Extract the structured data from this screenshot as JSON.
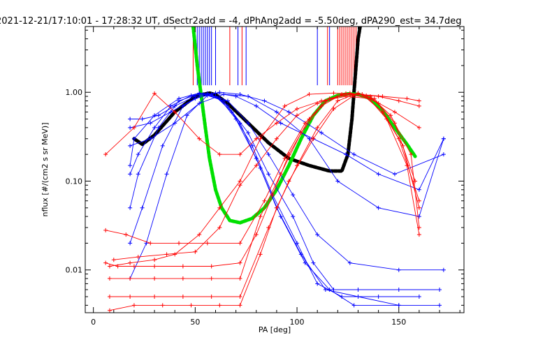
{
  "chart_data": {
    "type": "line",
    "title": "2021-12-21/17:10:01 - 17:28:32 UT, dSectr2add = -4, dPhAng2add = -5.50deg, dPA290_est=  34.7deg",
    "xlabel": "PA [deg]",
    "ylabel": "nflux [#/(cm2 s sr MeV)]",
    "xlim": [
      -4,
      182
    ],
    "ylim": [
      0.0033,
      5.5
    ],
    "yscale": "log",
    "grid": false,
    "x_ticks": [
      0,
      50,
      100,
      150
    ],
    "x_tick_labels": [
      "0",
      "50",
      "100",
      "150"
    ],
    "y_ticks": [
      0.01,
      0.1,
      1.0
    ],
    "y_tick_labels": [
      "0.01",
      "0.10",
      "1.00"
    ],
    "colors": {
      "blue": "#0000ff",
      "red": "#ff0000",
      "black": "#000000",
      "green": "#00e000"
    },
    "marker_lines": {
      "blue": [
        51,
        52,
        53,
        54,
        55,
        56,
        57,
        58,
        60,
        71,
        75,
        110,
        116
      ],
      "red": [
        49,
        67,
        73,
        115,
        120,
        121,
        122,
        123,
        124,
        125,
        126,
        127,
        128,
        129
      ],
      "y_from": 1.2,
      "y_to": 5.5
    },
    "series": [
      {
        "color": "black",
        "style": "thick-dashed",
        "x": [
          20,
          24,
          30,
          40,
          50,
          57,
          60,
          66,
          76,
          86,
          96,
          106,
          116,
          122,
          125,
          127,
          128,
          129,
          130,
          131
        ],
        "y": [
          0.3,
          0.26,
          0.33,
          0.6,
          0.9,
          0.98,
          0.94,
          0.75,
          0.45,
          0.27,
          0.18,
          0.15,
          0.13,
          0.13,
          0.2,
          0.5,
          1.0,
          2.0,
          4.0,
          5.5
        ]
      },
      {
        "color": "green",
        "style": "thick-dashed",
        "x": [
          49,
          51,
          53,
          55,
          57,
          60,
          63,
          67,
          72,
          78,
          84,
          90,
          96,
          102,
          108,
          114,
          120,
          125,
          130,
          136,
          142,
          148,
          154,
          158
        ],
        "y": [
          5.5,
          2.0,
          0.9,
          0.4,
          0.18,
          0.08,
          0.05,
          0.036,
          0.034,
          0.038,
          0.05,
          0.08,
          0.15,
          0.3,
          0.55,
          0.8,
          0.92,
          0.96,
          0.95,
          0.85,
          0.62,
          0.4,
          0.26,
          0.19
        ]
      },
      {
        "color": "blue",
        "style": "cross-line",
        "x": [
          18,
          20,
          30,
          42,
          52,
          58,
          66,
          76,
          86,
          98,
          108,
          118,
          130,
          150,
          170
        ],
        "y": [
          0.15,
          0.3,
          0.55,
          0.85,
          0.98,
          0.95,
          0.7,
          0.35,
          0.12,
          0.04,
          0.012,
          0.006,
          0.006,
          0.006,
          0.006
        ]
      },
      {
        "color": "blue",
        "style": "cross-line",
        "x": [
          18,
          22,
          32,
          42,
          52,
          60,
          68,
          78,
          88,
          100,
          110,
          122,
          140,
          160
        ],
        "y": [
          0.05,
          0.12,
          0.4,
          0.8,
          0.96,
          0.9,
          0.6,
          0.25,
          0.07,
          0.02,
          0.007,
          0.005,
          0.005,
          0.005
        ]
      },
      {
        "color": "blue",
        "style": "cross-line",
        "x": [
          18,
          24,
          34,
          44,
          54,
          62,
          70,
          80,
          90,
          102,
          114,
          130,
          150,
          170
        ],
        "y": [
          0.02,
          0.05,
          0.25,
          0.7,
          0.95,
          0.85,
          0.5,
          0.18,
          0.05,
          0.015,
          0.006,
          0.005,
          0.004,
          0.004
        ]
      },
      {
        "color": "blue",
        "style": "cross-line",
        "x": [
          18,
          26,
          36,
          46,
          56,
          64,
          72,
          82,
          92,
          104,
          116,
          128,
          150
        ],
        "y": [
          0.008,
          0.02,
          0.12,
          0.55,
          0.92,
          0.8,
          0.45,
          0.14,
          0.04,
          0.012,
          0.006,
          0.004,
          0.004
        ]
      },
      {
        "color": "blue",
        "style": "cross-line",
        "x": [
          18,
          24,
          32,
          40,
          50,
          60,
          70,
          80,
          92,
          108,
          124,
          140,
          160,
          172
        ],
        "y": [
          0.5,
          0.5,
          0.55,
          0.7,
          0.9,
          0.98,
          0.9,
          0.7,
          0.45,
          0.3,
          0.2,
          0.12,
          0.08,
          0.3
        ]
      },
      {
        "color": "blue",
        "style": "cross-line",
        "x": [
          18,
          28,
          38,
          50,
          62,
          72,
          84,
          96,
          112,
          128,
          148,
          172
        ],
        "y": [
          0.4,
          0.45,
          0.6,
          0.85,
          1.0,
          0.95,
          0.8,
          0.6,
          0.35,
          0.2,
          0.12,
          0.2
        ]
      },
      {
        "color": "blue",
        "style": "cross-line",
        "x": [
          18,
          28,
          40,
          52,
          64,
          76,
          90,
          106,
          120,
          140,
          160,
          172
        ],
        "y": [
          0.25,
          0.3,
          0.45,
          0.75,
          0.95,
          0.9,
          0.6,
          0.3,
          0.1,
          0.05,
          0.04,
          0.3
        ]
      },
      {
        "color": "blue",
        "style": "cross-line",
        "x": [
          18,
          22,
          30,
          38,
          48,
          56,
          66,
          76,
          86,
          98,
          110,
          126,
          150,
          172
        ],
        "y": [
          0.12,
          0.2,
          0.4,
          0.7,
          0.92,
          0.97,
          0.8,
          0.45,
          0.2,
          0.07,
          0.025,
          0.012,
          0.01,
          0.01
        ]
      },
      {
        "color": "red",
        "style": "cross-line",
        "x": [
          6,
          12,
          20,
          30,
          44,
          58,
          72,
          80,
          88,
          96,
          106,
          116,
          126,
          136,
          146,
          156,
          160
        ],
        "y": [
          0.012,
          0.011,
          0.011,
          0.011,
          0.011,
          0.011,
          0.012,
          0.025,
          0.07,
          0.2,
          0.5,
          0.85,
          0.98,
          0.9,
          0.55,
          0.2,
          0.03
        ]
      },
      {
        "color": "red",
        "style": "cross-line",
        "x": [
          8,
          18,
          30,
          44,
          58,
          72,
          82,
          92,
          102,
          112,
          122,
          132,
          142,
          152,
          160
        ],
        "y": [
          0.008,
          0.008,
          0.008,
          0.008,
          0.008,
          0.008,
          0.04,
          0.12,
          0.35,
          0.7,
          0.95,
          0.95,
          0.6,
          0.25,
          0.05
        ]
      },
      {
        "color": "red",
        "style": "cross-line",
        "x": [
          6,
          16,
          28,
          42,
          56,
          72,
          84,
          94,
          104,
          114,
          124,
          134,
          144,
          154,
          160
        ],
        "y": [
          0.028,
          0.025,
          0.02,
          0.02,
          0.02,
          0.02,
          0.06,
          0.18,
          0.45,
          0.8,
          0.97,
          0.92,
          0.5,
          0.15,
          0.025
        ]
      },
      {
        "color": "red",
        "style": "cross-line",
        "x": [
          8,
          18,
          30,
          44,
          58,
          72,
          86,
          96,
          108,
          118,
          128,
          138,
          148,
          158
        ],
        "y": [
          0.005,
          0.005,
          0.005,
          0.005,
          0.005,
          0.005,
          0.03,
          0.1,
          0.3,
          0.65,
          0.92,
          0.85,
          0.45,
          0.1
        ]
      },
      {
        "color": "red",
        "style": "cross-line",
        "x": [
          8,
          20,
          34,
          48,
          62,
          72,
          82,
          90,
          100,
          110,
          120,
          130,
          140,
          150,
          160
        ],
        "y": [
          0.0035,
          0.004,
          0.004,
          0.004,
          0.004,
          0.004,
          0.015,
          0.05,
          0.15,
          0.4,
          0.8,
          0.98,
          0.75,
          0.3,
          0.06
        ]
      },
      {
        "color": "red",
        "style": "cross-line",
        "x": [
          6,
          20,
          30,
          40,
          52,
          62,
          72,
          80,
          90,
          100,
          112,
          124,
          136,
          148,
          160
        ],
        "y": [
          0.2,
          0.4,
          0.97,
          0.6,
          0.3,
          0.2,
          0.2,
          0.3,
          0.45,
          0.65,
          0.8,
          0.9,
          0.85,
          0.6,
          0.4
        ]
      },
      {
        "color": "red",
        "style": "cross-line",
        "x": [
          10,
          22,
          36,
          50,
          62,
          72,
          80,
          90,
          100,
          110,
          120,
          130,
          140,
          150,
          160
        ],
        "y": [
          0.013,
          0.014,
          0.015,
          0.016,
          0.03,
          0.09,
          0.15,
          0.3,
          0.55,
          0.75,
          0.9,
          0.95,
          0.9,
          0.8,
          0.7
        ]
      },
      {
        "color": "red",
        "style": "cross-line",
        "x": [
          8,
          18,
          30,
          40,
          52,
          62,
          72,
          82,
          94,
          106,
          118,
          130,
          142,
          154,
          160
        ],
        "y": [
          0.011,
          0.012,
          0.013,
          0.015,
          0.025,
          0.05,
          0.1,
          0.3,
          0.7,
          0.95,
          0.98,
          0.95,
          0.9,
          0.85,
          0.8
        ]
      }
    ]
  }
}
